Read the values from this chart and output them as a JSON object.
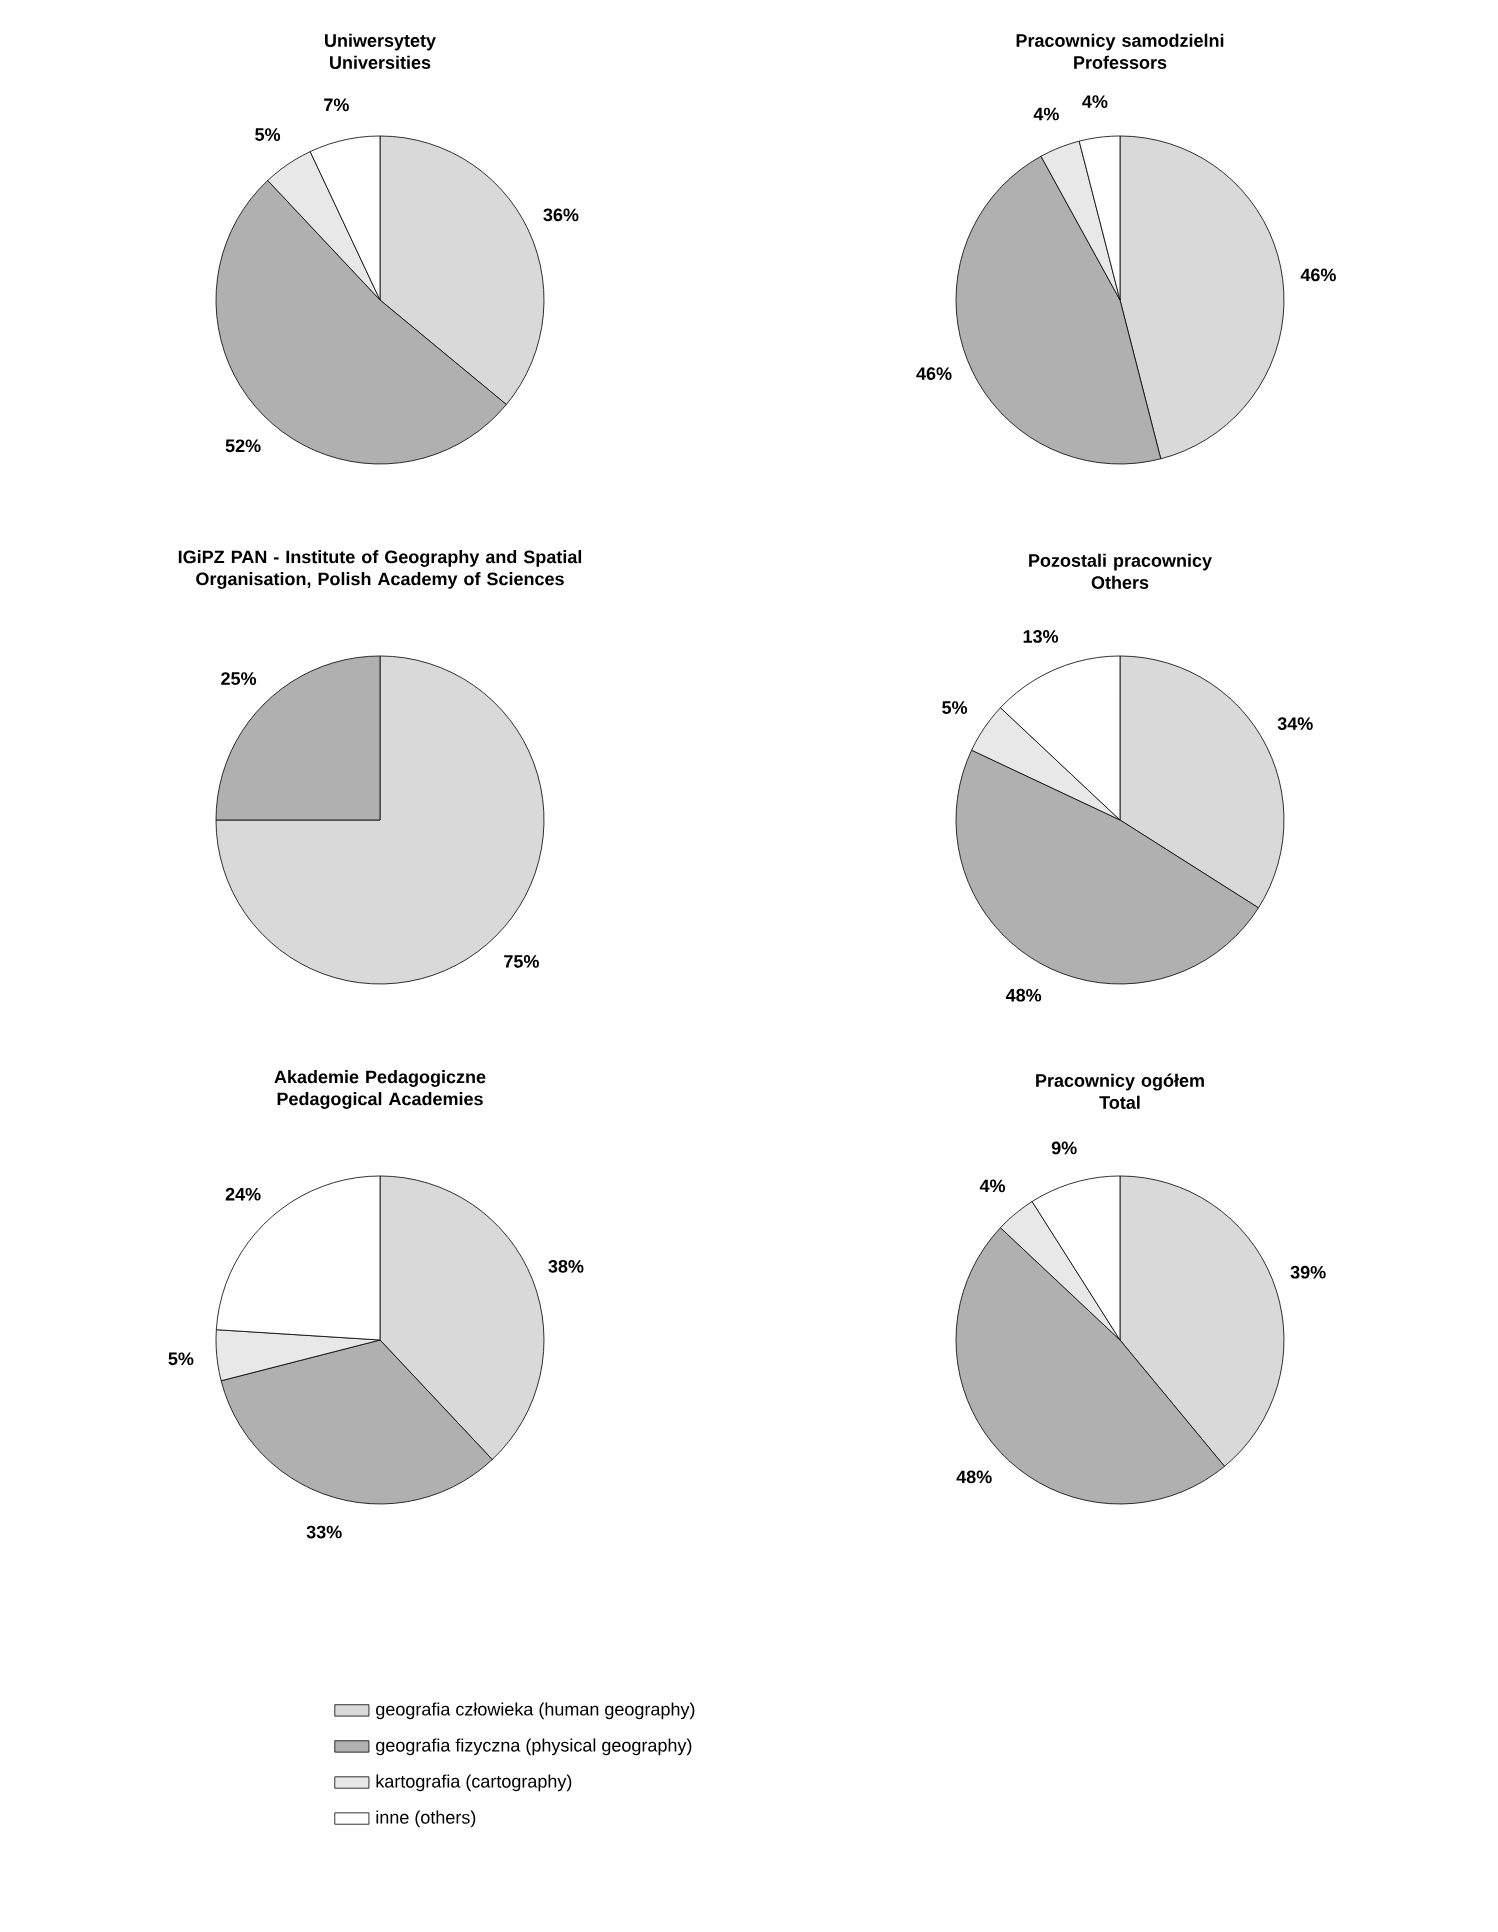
{
  "chart_data": [
    {
      "type": "pie",
      "title": "Uniwersytety",
      "subtitle": "Universities",
      "categories": [
        null,
        null,
        null,
        null
      ],
      "values": [
        36,
        52,
        5,
        7
      ],
      "value_labels": [
        "36%",
        "52%",
        "5%",
        "7%"
      ],
      "colors": [
        "#d9d9d9",
        "#b0b0b0",
        "#e8e8e8",
        "#ffffff"
      ]
    },
    {
      "type": "pie",
      "title": "Pracownicy samodzielni",
      "subtitle": "Professors",
      "categories": [
        null,
        null,
        null,
        null
      ],
      "values": [
        46,
        46,
        4,
        4
      ],
      "value_labels": [
        "46%",
        "46%",
        "4%",
        "4%"
      ],
      "colors": [
        "#d9d9d9",
        "#b0b0b0",
        "#e8e8e8",
        "#ffffff"
      ]
    },
    {
      "type": "pie",
      "title": "IGiPZ PAN - Institute of Geography and Spatial Organisation, Polish Academy of Sciences",
      "categories": [
        null,
        null
      ],
      "values": [
        75,
        25
      ],
      "value_labels": [
        "75%",
        "25%"
      ],
      "colors": [
        "#d9d9d9",
        "#b0b0b0"
      ]
    },
    {
      "type": "pie",
      "title": "Pozostali pracownicy",
      "subtitle": "Others",
      "categories": [
        null,
        null,
        null,
        null
      ],
      "values": [
        34,
        48,
        5,
        13
      ],
      "value_labels": [
        "34%",
        "48%",
        "5%",
        "13%"
      ],
      "colors": [
        "#d9d9d9",
        "#b0b0b0",
        "#e8e8e8",
        "#ffffff"
      ]
    },
    {
      "type": "pie",
      "title": "Akademie Pedagogiczne",
      "subtitle": "Pedagogical Academies",
      "categories": [
        null,
        null,
        null,
        null
      ],
      "values": [
        38,
        33,
        5,
        24
      ],
      "value_labels": [
        "38%",
        "33%",
        "5%",
        "24%"
      ],
      "colors": [
        "#d9d9d9",
        "#b0b0b0",
        "#e8e8e8",
        "#ffffff"
      ]
    },
    {
      "type": "pie",
      "title": "Pracownicy ogółem",
      "subtitle": "Total",
      "categories": [
        "geografia człowieka (human geography)",
        "geografia fizyczna (physical geography)",
        "kartografia (cartography)",
        "inne (others)"
      ],
      "values": [
        39,
        48,
        4,
        9
      ],
      "value_labels": [
        "39%",
        "48%",
        "4%",
        "9%"
      ],
      "colors": [
        "#d9d9d9",
        "#b0b0b0",
        "#e8e8e8",
        "#ffffff"
      ],
      "legend": "bottom"
    }
  ]
}
